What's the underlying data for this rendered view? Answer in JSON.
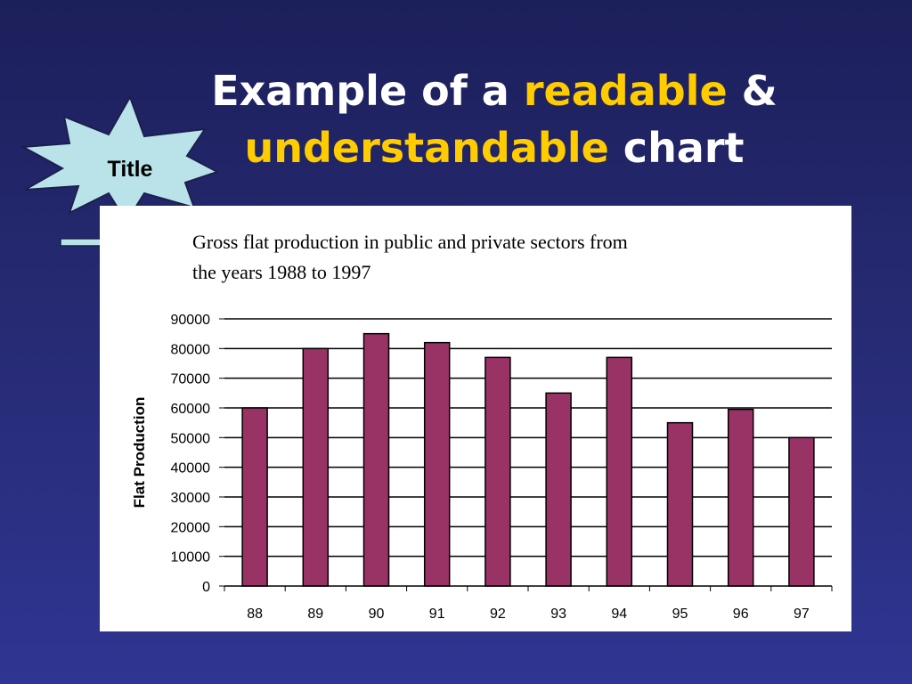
{
  "slide": {
    "title_part1": "Example of a ",
    "title_highlight1": "readable",
    "title_part2": " &",
    "title_highlight2": "understandable",
    "title_part3": " chart",
    "callout_label": "Title"
  },
  "colors": {
    "background": "#262a72",
    "title_text": "#ffffff",
    "title_highlight": "#ffcc00",
    "burst_fill": "#b9e3e8",
    "bar_fill": "#993366",
    "panel": "#ffffff"
  },
  "chart_data": {
    "type": "bar",
    "title": "Gross flat production in public and private sectors from the years 1988 to 1997",
    "title_line1": "Gross flat production in public and private sectors from",
    "title_line2": "the years 1988 to 1997",
    "xlabel": "",
    "ylabel": "Flat Production",
    "categories": [
      "88",
      "89",
      "90",
      "91",
      "92",
      "93",
      "94",
      "95",
      "96",
      "97"
    ],
    "values": [
      60000,
      80000,
      85000,
      82000,
      77000,
      65000,
      77000,
      55000,
      59500,
      50000
    ],
    "ylim": [
      0,
      90000
    ],
    "yticks": [
      0,
      10000,
      20000,
      30000,
      40000,
      50000,
      60000,
      70000,
      80000,
      90000
    ],
    "grid": true,
    "legend": "none"
  }
}
